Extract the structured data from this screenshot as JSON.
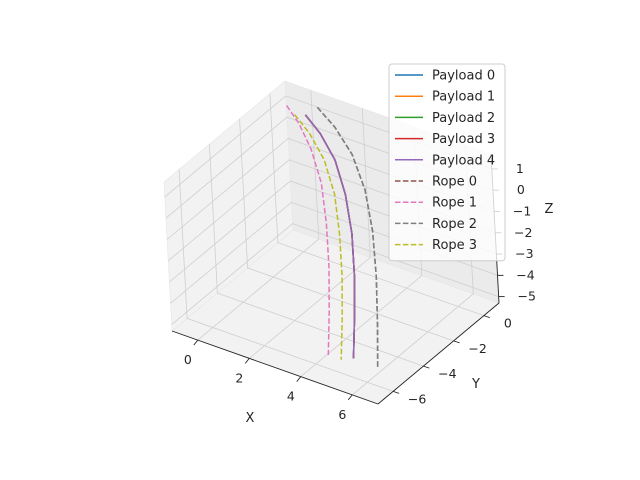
{
  "chart_data": {
    "type": "line",
    "projection": "3d",
    "xlabel": "X",
    "ylabel": "Y",
    "zlabel": "Z",
    "xlim": [
      -1,
      7
    ],
    "ylim": [
      -7,
      1
    ],
    "zlim": [
      -5.3,
      1.7
    ],
    "x_ticks": [
      "0",
      "2",
      "4",
      "6"
    ],
    "y_ticks": [
      "−6",
      "−4",
      "−2",
      "0"
    ],
    "z_ticks": [
      "−5",
      "−4",
      "−3",
      "−2",
      "−1",
      "0",
      "1"
    ],
    "grid": true,
    "legend_position": "top-right",
    "series": [
      {
        "name": "Payload 0",
        "style": "solid",
        "color": "#1f77b4",
        "x": [
          0.3,
          1.1,
          2.0,
          2.9,
          3.7,
          4.4,
          5.0,
          5.5
        ],
        "y": [
          0.1,
          -0.3,
          -0.9,
          -1.8,
          -2.8,
          -3.9,
          -5.0,
          -6.0
        ],
        "z": [
          1.2,
          0.9,
          0.4,
          -0.3,
          -1.2,
          -2.2,
          -3.3,
          -4.4
        ]
      },
      {
        "name": "Payload 1",
        "style": "solid",
        "color": "#ff7f0e",
        "x": [
          0.3,
          1.1,
          2.0,
          2.9,
          3.7,
          4.4,
          5.0,
          5.5
        ],
        "y": [
          0.1,
          -0.3,
          -0.9,
          -1.8,
          -2.8,
          -3.9,
          -5.0,
          -6.0
        ],
        "z": [
          1.2,
          0.9,
          0.4,
          -0.3,
          -1.2,
          -2.2,
          -3.3,
          -4.4
        ]
      },
      {
        "name": "Payload 2",
        "style": "solid",
        "color": "#2ca02c",
        "x": [
          0.3,
          1.1,
          2.0,
          2.9,
          3.7,
          4.4,
          5.0,
          5.5
        ],
        "y": [
          0.1,
          -0.3,
          -0.9,
          -1.8,
          -2.8,
          -3.9,
          -5.0,
          -6.0
        ],
        "z": [
          1.2,
          0.9,
          0.4,
          -0.3,
          -1.2,
          -2.2,
          -3.3,
          -4.4
        ]
      },
      {
        "name": "Payload 3",
        "style": "solid",
        "color": "#d62728",
        "x": [
          0.3,
          1.1,
          2.0,
          2.9,
          3.7,
          4.4,
          5.0,
          5.5
        ],
        "y": [
          0.1,
          -0.3,
          -0.9,
          -1.8,
          -2.8,
          -3.9,
          -5.0,
          -6.0
        ],
        "z": [
          1.2,
          0.9,
          0.4,
          -0.3,
          -1.2,
          -2.2,
          -3.3,
          -4.4
        ]
      },
      {
        "name": "Payload 4",
        "style": "solid",
        "color": "#9467bd",
        "x": [
          0.3,
          1.1,
          2.0,
          2.9,
          3.7,
          4.4,
          5.0,
          5.5
        ],
        "y": [
          0.1,
          -0.3,
          -0.9,
          -1.8,
          -2.8,
          -3.9,
          -5.0,
          -6.0
        ],
        "z": [
          1.2,
          0.9,
          0.4,
          -0.3,
          -1.2,
          -2.2,
          -3.3,
          -4.4
        ]
      },
      {
        "name": "Rope 0",
        "style": "dashed",
        "color": "#8c564b",
        "x": [
          0.6,
          1.5,
          2.5,
          3.5,
          4.4,
          5.2,
          5.9,
          6.5
        ],
        "y": [
          0.4,
          0.0,
          -0.6,
          -1.5,
          -2.6,
          -3.8,
          -5.0,
          -6.1
        ],
        "z": [
          1.5,
          1.2,
          0.7,
          0.0,
          -0.9,
          -2.0,
          -3.2,
          -4.4
        ]
      },
      {
        "name": "Rope 1",
        "style": "dashed",
        "color": "#e377c2",
        "x": [
          -0.3,
          0.4,
          1.2,
          2.1,
          2.9,
          3.6,
          4.2,
          4.7
        ],
        "y": [
          -0.1,
          -0.5,
          -1.1,
          -2.0,
          -3.1,
          -4.2,
          -5.3,
          -6.3
        ],
        "z": [
          1.5,
          1.2,
          0.7,
          0.0,
          -0.9,
          -2.0,
          -3.2,
          -4.4
        ]
      },
      {
        "name": "Rope 2",
        "style": "dashed",
        "color": "#7f7f7f",
        "x": [
          0.6,
          1.5,
          2.5,
          3.5,
          4.4,
          5.2,
          5.9,
          6.5
        ],
        "y": [
          0.4,
          0.0,
          -0.6,
          -1.5,
          -2.6,
          -3.8,
          -5.0,
          -6.1
        ],
        "z": [
          1.5,
          1.2,
          0.7,
          0.0,
          -0.9,
          -2.0,
          -3.2,
          -4.4
        ]
      },
      {
        "name": "Rope 3",
        "style": "dashed",
        "color": "#bcbd22",
        "x": [
          0.0,
          0.8,
          1.7,
          2.6,
          3.4,
          4.1,
          4.7,
          5.2
        ],
        "y": [
          -0.1,
          -0.5,
          -1.1,
          -2.0,
          -3.1,
          -4.2,
          -5.3,
          -6.3
        ],
        "z": [
          1.2,
          0.9,
          0.4,
          -0.3,
          -1.2,
          -2.2,
          -3.3,
          -4.4
        ]
      }
    ]
  }
}
